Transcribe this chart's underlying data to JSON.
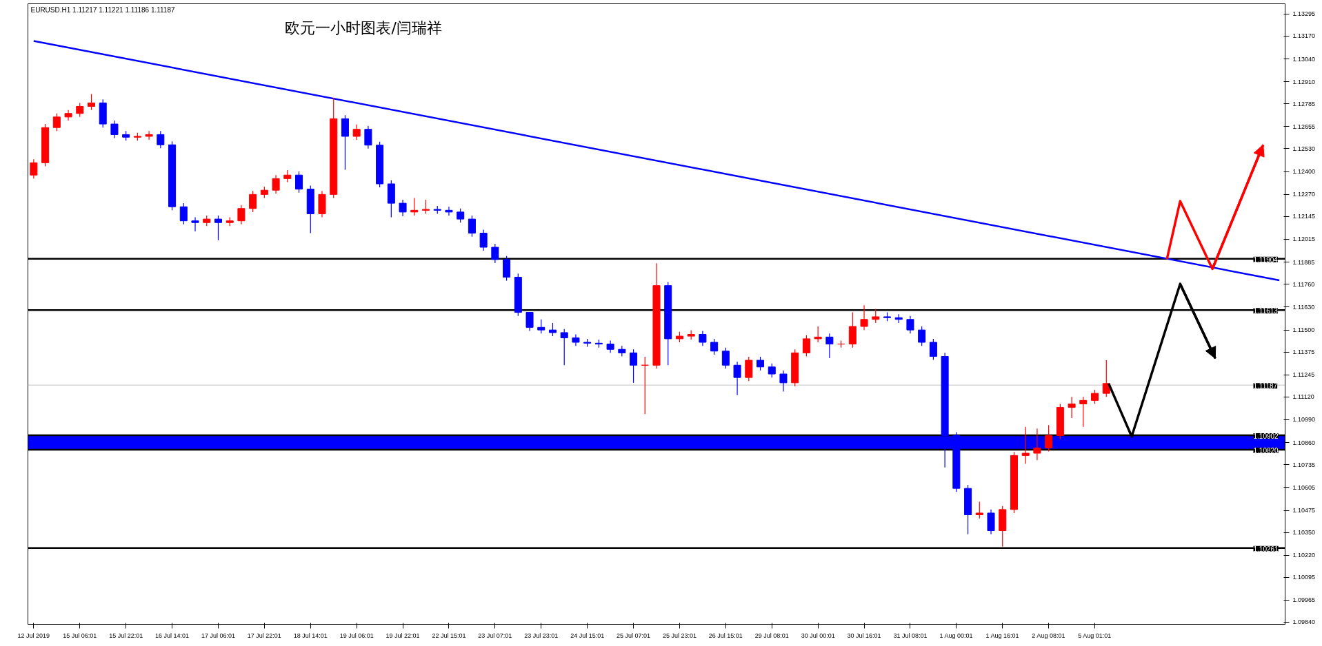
{
  "chart_data": {
    "type": "candlestick",
    "title": "欧元一小时图表/闫瑞祥",
    "annotations": [
      "EURUSD.H1  1.11217 1.11221 1.11186 1.11187"
    ],
    "categories": [
      "12 Jul 2019",
      null,
      null,
      null,
      "15 Jul 06:01",
      null,
      null,
      null,
      "15 Jul 22:01",
      null,
      null,
      null,
      "16 Jul 14:01",
      null,
      null,
      null,
      "17 Jul 06:01",
      null,
      null,
      null,
      "17 Jul 22:01",
      null,
      null,
      null,
      "18 Jul 14:01",
      null,
      null,
      null,
      "19 Jul 06:01",
      null,
      null,
      null,
      "19 Jul 22:01",
      null,
      null,
      null,
      "22 Jul 15:01",
      null,
      null,
      null,
      "23 Jul 07:01",
      null,
      null,
      null,
      "23 Jul 23:01",
      null,
      null,
      null,
      "24 Jul 15:01",
      null,
      null,
      null,
      "25 Jul 07:01",
      null,
      null,
      null,
      "25 Jul 23:01",
      null,
      null,
      null,
      "26 Jul 15:01",
      null,
      null,
      null,
      "29 Jul 08:01",
      null,
      null,
      null,
      "30 Jul 00:01",
      null,
      null,
      null,
      "30 Jul 16:01",
      null,
      null,
      null,
      "31 Jul 08:01",
      null,
      null,
      null,
      "1 Aug 00:01",
      null,
      null,
      null,
      "1 Aug 16:01",
      null,
      null,
      null,
      "2 Aug 08:01",
      null,
      null,
      null,
      "5 Aug 01:01",
      null,
      null,
      null,
      null,
      null,
      null,
      null,
      null,
      null,
      null,
      null,
      null,
      null,
      null,
      null,
      null
    ],
    "ohlc": [
      [
        1.1238,
        1.1247,
        1.1236,
        1.1245
      ],
      [
        1.1245,
        1.1267,
        1.1243,
        1.1265
      ],
      [
        1.1265,
        1.1273,
        1.1263,
        1.1271
      ],
      [
        1.1271,
        1.1275,
        1.1269,
        1.1273
      ],
      [
        1.1273,
        1.1279,
        1.1271,
        1.1277
      ],
      [
        1.1277,
        1.1284,
        1.1275,
        1.1279
      ],
      [
        1.1279,
        1.1281,
        1.1265,
        1.1267
      ],
      [
        1.1267,
        1.1269,
        1.1259,
        1.1261
      ],
      [
        1.1261,
        1.1263,
        1.12575,
        1.12595
      ],
      [
        1.12595,
        1.1262,
        1.12575,
        1.126
      ],
      [
        1.126,
        1.1263,
        1.1258,
        1.1261
      ],
      [
        1.1261,
        1.1263,
        1.12532,
        1.12552
      ],
      [
        1.12552,
        1.12572,
        1.1218,
        1.122
      ],
      [
        1.122,
        1.1222,
        1.121,
        1.1212
      ],
      [
        1.1212,
        1.1214,
        1.1206,
        1.1211
      ],
      [
        1.1211,
        1.1215,
        1.1209,
        1.1213
      ],
      [
        1.1213,
        1.1215,
        1.1201,
        1.1211
      ],
      [
        1.1211,
        1.1214,
        1.1209,
        1.1212
      ],
      [
        1.1212,
        1.1221,
        1.121,
        1.1219
      ],
      [
        1.1219,
        1.1229,
        1.1217,
        1.1227
      ],
      [
        1.1227,
        1.12314,
        1.1225,
        1.12294
      ],
      [
        1.12294,
        1.1238,
        1.12274,
        1.1236
      ],
      [
        1.1236,
        1.12408,
        1.1234,
        1.1238
      ],
      [
        1.1238,
        1.124,
        1.1228,
        1.123
      ],
      [
        1.123,
        1.1232,
        1.1205,
        1.1216
      ],
      [
        1.1216,
        1.1229,
        1.1214,
        1.1227
      ],
      [
        1.1227,
        1.1282,
        1.1225,
        1.127
      ],
      [
        1.127,
        1.1272,
        1.1241,
        1.126
      ],
      [
        1.126,
        1.12667,
        1.1258,
        1.1264
      ],
      [
        1.1264,
        1.1266,
        1.1253,
        1.1255
      ],
      [
        1.1255,
        1.1257,
        1.1231,
        1.1233
      ],
      [
        1.1233,
        1.1235,
        1.1214,
        1.1222
      ],
      [
        1.1222,
        1.1224,
        1.12146,
        1.1217
      ],
      [
        1.1217,
        1.1225,
        1.1215,
        1.1218
      ],
      [
        1.1218,
        1.1224,
        1.1216,
        1.12185
      ],
      [
        1.12185,
        1.12205,
        1.1216,
        1.1218
      ],
      [
        1.1218,
        1.122,
        1.1215,
        1.1217
      ],
      [
        1.1217,
        1.1219,
        1.1211,
        1.1213
      ],
      [
        1.1213,
        1.1215,
        1.1203,
        1.1205
      ],
      [
        1.1205,
        1.1207,
        1.1195,
        1.1197
      ],
      [
        1.1197,
        1.1199,
        1.1188,
        1.119
      ],
      [
        1.119,
        1.1192,
        1.1178,
        1.118
      ],
      [
        1.118,
        1.1182,
        1.1158,
        1.116
      ],
      [
        1.116,
        1.116,
        1.11495,
        1.11515
      ],
      [
        1.11515,
        1.1156,
        1.1148,
        1.115
      ],
      [
        1.115,
        1.1154,
        1.11465,
        1.11485
      ],
      [
        1.11485,
        1.11505,
        1.113,
        1.11455
      ],
      [
        1.11455,
        1.11475,
        1.1141,
        1.1143
      ],
      [
        1.1143,
        1.1145,
        1.11405,
        1.11425
      ],
      [
        1.11425,
        1.11445,
        1.114,
        1.1142
      ],
      [
        1.1142,
        1.1144,
        1.1137,
        1.1139
      ],
      [
        1.1139,
        1.1141,
        1.1135,
        1.1137
      ],
      [
        1.1137,
        1.1139,
        1.112,
        1.113
      ],
      [
        1.113,
        1.11348,
        1.11022,
        1.113
      ],
      [
        1.113,
        1.11879,
        1.1128,
        1.11752
      ],
      [
        1.11752,
        1.11772,
        1.113,
        1.1145
      ],
      [
        1.1145,
        1.1149,
        1.1143,
        1.11465
      ],
      [
        1.11465,
        1.11499,
        1.11445,
        1.11475
      ],
      [
        1.11475,
        1.11495,
        1.1141,
        1.1143
      ],
      [
        1.1143,
        1.1145,
        1.1136,
        1.1138
      ],
      [
        1.1138,
        1.114,
        1.1128,
        1.113
      ],
      [
        1.113,
        1.1132,
        1.1113,
        1.1123
      ],
      [
        1.1123,
        1.11348,
        1.1121,
        1.11328
      ],
      [
        1.11328,
        1.11348,
        1.1127,
        1.1129
      ],
      [
        1.1129,
        1.1131,
        1.1123,
        1.1125
      ],
      [
        1.1125,
        1.1127,
        1.1115,
        1.112
      ],
      [
        1.112,
        1.1139,
        1.1118,
        1.1137
      ],
      [
        1.1137,
        1.1147,
        1.1135,
        1.1145
      ],
      [
        1.1145,
        1.1152,
        1.1143,
        1.1146
      ],
      [
        1.1146,
        1.1148,
        1.1134,
        1.1142
      ],
      [
        1.1142,
        1.1144,
        1.114,
        1.1142
      ],
      [
        1.1142,
        1.116,
        1.114,
        1.1152
      ],
      [
        1.1152,
        1.1164,
        1.115,
        1.1156
      ],
      [
        1.1156,
        1.1162,
        1.1154,
        1.11575
      ],
      [
        1.11575,
        1.116,
        1.1155,
        1.1157
      ],
      [
        1.1157,
        1.1159,
        1.1154,
        1.1156
      ],
      [
        1.1156,
        1.1158,
        1.1148,
        1.115
      ],
      [
        1.115,
        1.1152,
        1.1141,
        1.1143
      ],
      [
        1.1143,
        1.1145,
        1.1133,
        1.1135
      ],
      [
        1.1135,
        1.1137,
        1.10719,
        1.109
      ],
      [
        1.109,
        1.1092,
        1.1058,
        1.106
      ],
      [
        1.106,
        1.1062,
        1.1034,
        1.1045
      ],
      [
        1.1045,
        1.10524,
        1.1043,
        1.1046
      ],
      [
        1.1046,
        1.1048,
        1.1034,
        1.1036
      ],
      [
        1.1036,
        1.105,
        1.10269,
        1.1048
      ],
      [
        1.1048,
        1.10807,
        1.1046,
        1.10787
      ],
      [
        1.10787,
        1.1095,
        1.1074,
        1.108
      ],
      [
        1.108,
        1.1094,
        1.1076,
        1.1083
      ],
      [
        1.1083,
        1.1096,
        1.1081,
        1.109
      ],
      [
        1.109,
        1.1108,
        1.1088,
        1.1106
      ],
      [
        1.1106,
        1.1112,
        1.11,
        1.1108
      ],
      [
        1.1108,
        1.1112,
        1.1095,
        1.111
      ],
      [
        1.111,
        1.1116,
        1.1108,
        1.1114
      ],
      [
        1.1114,
        1.11328,
        1.1112,
        1.11196
      ],
      null,
      null,
      null,
      null,
      null,
      null,
      null,
      null,
      null,
      null,
      null,
      null,
      null,
      null,
      null
    ],
    "colors": [
      "#ff0000",
      "#ff0000",
      "#ff0000",
      "#ff0000",
      "#ff0000",
      "#ff0000",
      "#0000ff",
      "#0000ff",
      "#0000ff",
      "#ff0000",
      "#ff0000",
      "#0000ff",
      "#0000ff",
      "#0000ff",
      "#0000ff",
      "#ff0000",
      "#0000ff",
      "#ff0000",
      "#ff0000",
      "#ff0000",
      "#ff0000",
      "#ff0000",
      "#ff0000",
      "#0000ff",
      "#0000ff",
      "#ff0000",
      "#ff0000",
      "#0000ff",
      "#ff0000",
      "#0000ff",
      "#0000ff",
      "#0000ff",
      "#0000ff",
      "#ff0000",
      "#ff0000",
      "#0000ff",
      "#0000ff",
      "#0000ff",
      "#0000ff",
      "#0000ff",
      "#0000ff",
      "#0000ff",
      "#0000ff",
      "#0000ff",
      "#0000ff",
      "#0000ff",
      "#0000ff",
      "#0000ff",
      "#0000ff",
      "#0000ff",
      "#0000ff",
      "#0000ff",
      "#0000ff",
      "#ff0000",
      "#ff0000",
      "#0000ff",
      "#ff0000",
      "#ff0000",
      "#0000ff",
      "#0000ff",
      "#0000ff",
      "#0000ff",
      "#ff0000",
      "#0000ff",
      "#0000ff",
      "#0000ff",
      "#ff0000",
      "#ff0000",
      "#ff0000",
      "#0000ff",
      "#ff0000",
      "#ff0000",
      "#ff0000",
      "#ff0000",
      "#0000ff",
      "#0000ff",
      "#0000ff",
      "#0000ff",
      "#0000ff",
      "#0000ff",
      "#0000ff",
      "#0000ff",
      "#ff0000",
      "#0000ff",
      "#ff0000",
      "#ff0000",
      "#ff0000",
      "#ff0000",
      "#ff0000",
      "#ff0000",
      "#ff0000",
      "#ff0000",
      "#ff0000",
      "#ff0000",
      null,
      null,
      null,
      null,
      null,
      null,
      null,
      null,
      null,
      null,
      null,
      null,
      null,
      null,
      null
    ],
    "series": [
      {
        "type": "line",
        "color": "#0000ff",
        "values": [
          1.13142,
          null,
          null,
          null,
          null,
          null,
          null,
          null,
          null,
          null,
          null,
          null,
          null,
          null,
          null,
          null,
          null,
          null,
          null,
          null,
          null,
          null,
          null,
          null,
          null,
          null,
          null,
          null,
          null,
          null,
          null,
          null,
          null,
          null,
          null,
          null,
          null,
          null,
          null,
          null,
          null,
          null,
          null,
          null,
          null,
          null,
          null,
          null,
          null,
          null,
          null,
          null,
          null,
          null,
          null,
          null,
          null,
          null,
          null,
          null,
          null,
          null,
          null,
          null,
          null,
          null,
          null,
          null,
          null,
          null,
          null,
          null,
          null,
          null,
          null,
          null,
          null,
          null,
          null,
          null,
          null,
          null,
          null,
          null,
          null,
          null,
          null,
          null,
          null,
          null,
          null,
          null,
          null,
          null,
          null,
          null,
          null,
          null,
          null,
          null,
          null,
          null,
          null,
          null,
          null,
          null,
          null,
          null,
          1.11782
        ]
      }
    ],
    "bands": [
      {
        "axis": "y",
        "from": 1.1082,
        "to": 1.10902,
        "color": "#0000ff"
      }
    ],
    "ref_lines": [
      {
        "axis": "y",
        "value": 1.11904,
        "label": "1.11904",
        "color": "#000000"
      },
      {
        "axis": "y",
        "value": 1.11613,
        "label": "1.11613",
        "color": "#000000"
      },
      {
        "axis": "y",
        "value": 1.11187,
        "label": "1.11187",
        "color": "#c0c0c0"
      },
      {
        "axis": "y",
        "value": 1.10902,
        "label": "1.10902",
        "color": "#000000"
      },
      {
        "axis": "y",
        "value": 1.1082,
        "label": "1.10820",
        "color": "#000000"
      },
      {
        "axis": "y",
        "value": 1.10261,
        "label": "1.10261",
        "color": "#000000"
      }
    ],
    "ylim": [
      1.09828,
      1.13353
    ],
    "yticks": [
      {
        "value": 1.13295,
        "label": "1.13295"
      },
      {
        "value": 1.1317,
        "label": "1.13170"
      },
      {
        "value": 1.1304,
        "label": "1.13040"
      },
      {
        "value": 1.1291,
        "label": "1.12910"
      },
      {
        "value": 1.12785,
        "label": "1.12785"
      },
      {
        "value": 1.12655,
        "label": "1.12655"
      },
      {
        "value": 1.1253,
        "label": "1.12530"
      },
      {
        "value": 1.124,
        "label": "1.12400"
      },
      {
        "value": 1.1227,
        "label": "1.12270"
      },
      {
        "value": 1.12145,
        "label": "1.12145"
      },
      {
        "value": 1.12015,
        "label": "1.12015"
      },
      {
        "value": 1.11885,
        "label": "1.11885"
      },
      {
        "value": 1.1176,
        "label": "1.11760"
      },
      {
        "value": 1.1163,
        "label": "1.11630"
      },
      {
        "value": 1.115,
        "label": "1.11500"
      },
      {
        "value": 1.11375,
        "label": "1.11375"
      },
      {
        "value": 1.11245,
        "label": "1.11245"
      },
      {
        "value": 1.1112,
        "label": "1.11120"
      },
      {
        "value": 1.1099,
        "label": "1.10990"
      },
      {
        "value": 1.1086,
        "label": "1.10860"
      },
      {
        "value": 1.10735,
        "label": "1.10735"
      },
      {
        "value": 1.10605,
        "label": "1.10605"
      },
      {
        "value": 1.10475,
        "label": "1.10475"
      },
      {
        "value": 1.1035,
        "label": "1.10350"
      },
      {
        "value": 1.1022,
        "label": "1.10220"
      },
      {
        "value": 1.10095,
        "label": "1.10095"
      },
      {
        "value": 1.09965,
        "label": "1.09965"
      },
      {
        "value": 1.0984,
        "label": "1.09840"
      }
    ],
    "grid": false
  }
}
